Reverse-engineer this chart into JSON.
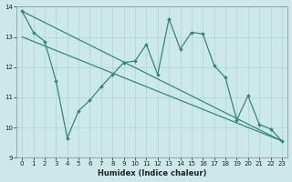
{
  "xlabel": "Humidex (Indice chaleur)",
  "bg_color": "#cce8e8",
  "line_color": "#2e8b7a",
  "grid_color": "#add4d4",
  "xlim": [
    -0.5,
    23.5
  ],
  "ylim": [
    9.0,
    14.0
  ],
  "yticks": [
    9,
    10,
    11,
    12,
    13,
    14
  ],
  "xticks": [
    0,
    1,
    2,
    3,
    4,
    5,
    6,
    7,
    8,
    9,
    10,
    11,
    12,
    13,
    14,
    15,
    16,
    17,
    18,
    19,
    20,
    21,
    22,
    23
  ],
  "line1_x": [
    0,
    23
  ],
  "line1_y": [
    13.85,
    9.55
  ],
  "line2_x": [
    0,
    23
  ],
  "line2_y": [
    13.0,
    9.55
  ],
  "line3_x": [
    0,
    1,
    2,
    3,
    4,
    5,
    6,
    7,
    8,
    9,
    10,
    11,
    12,
    13,
    14,
    15,
    16,
    17,
    18,
    19,
    20,
    21,
    22,
    23
  ],
  "line3_y": [
    13.85,
    13.15,
    12.85,
    11.55,
    9.65,
    10.55,
    10.9,
    11.35,
    11.75,
    12.15,
    12.2,
    12.75,
    11.75,
    13.6,
    12.6,
    13.15,
    13.1,
    12.05,
    11.65,
    10.25,
    11.05,
    10.1,
    9.95,
    9.55
  ]
}
